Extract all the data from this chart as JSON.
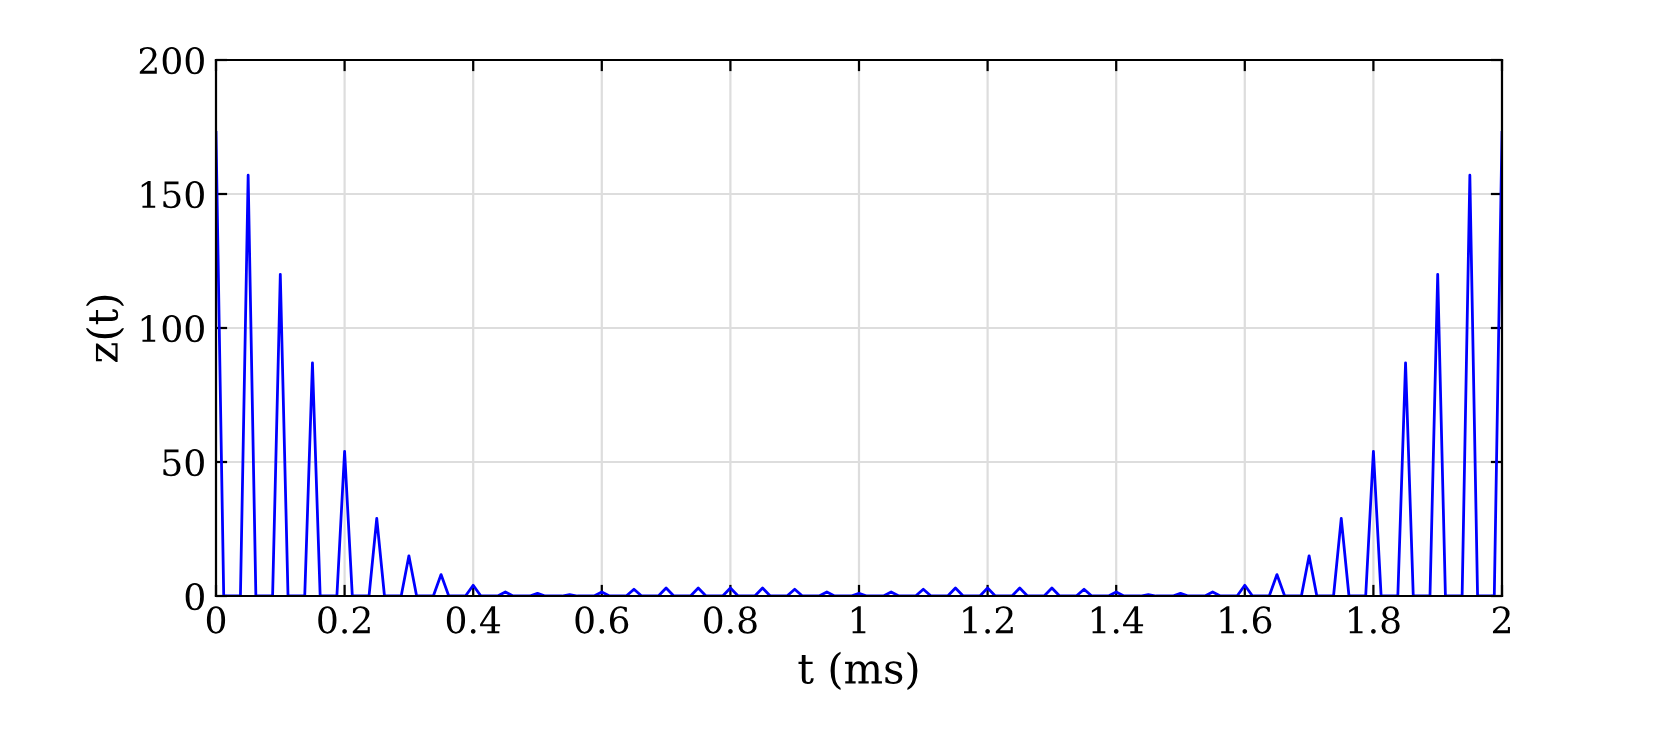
{
  "chart_data": {
    "type": "line",
    "xlabel": "t (ms)",
    "ylabel": "z(t)",
    "xlim": [
      0,
      2
    ],
    "ylim": [
      0,
      200
    ],
    "xticks": [
      0,
      0.2,
      0.4,
      0.6,
      0.8,
      1,
      1.2,
      1.4,
      1.6,
      1.8,
      2
    ],
    "yticks": [
      0,
      50,
      100,
      150,
      200
    ],
    "grid": true,
    "line_style": "solid",
    "marker": "none",
    "series": [
      {
        "color": "#0000ff",
        "x": [
          0,
          0.012,
          0.038,
          0.05,
          0.062,
          0.088,
          0.1,
          0.112,
          0.138,
          0.15,
          0.162,
          0.188,
          0.2,
          0.212,
          0.238,
          0.25,
          0.262,
          0.288,
          0.3,
          0.312,
          0.338,
          0.35,
          0.362,
          0.388,
          0.4,
          0.412,
          0.438,
          0.45,
          0.462,
          0.488,
          0.5,
          0.512,
          0.538,
          0.55,
          0.562,
          0.588,
          0.6,
          0.612,
          0.638,
          0.65,
          0.662,
          0.688,
          0.7,
          0.712,
          0.738,
          0.75,
          0.762,
          0.788,
          0.8,
          0.812,
          0.838,
          0.85,
          0.862,
          0.888,
          0.9,
          0.912,
          0.938,
          0.95,
          0.962,
          0.988,
          1,
          1.012,
          1.038,
          1.05,
          1.062,
          1.088,
          1.1,
          1.112,
          1.138,
          1.15,
          1.162,
          1.188,
          1.2,
          1.212,
          1.238,
          1.25,
          1.262,
          1.288,
          1.3,
          1.312,
          1.338,
          1.35,
          1.362,
          1.388,
          1.4,
          1.412,
          1.438,
          1.45,
          1.462,
          1.488,
          1.5,
          1.512,
          1.538,
          1.55,
          1.562,
          1.588,
          1.6,
          1.612,
          1.638,
          1.65,
          1.662,
          1.688,
          1.7,
          1.712,
          1.738,
          1.75,
          1.762,
          1.788,
          1.8,
          1.812,
          1.838,
          1.85,
          1.862,
          1.888,
          1.9,
          1.912,
          1.938,
          1.95,
          1.962,
          1.988,
          2
        ],
        "values": [
          173,
          0,
          0,
          157,
          0,
          0,
          120,
          0,
          0,
          87,
          0,
          0,
          54,
          0,
          0,
          29,
          0,
          0,
          15,
          0,
          0,
          8,
          0,
          0,
          4,
          0,
          0,
          1.5,
          0,
          0,
          1,
          0,
          0,
          0.5,
          0,
          0,
          1.5,
          0,
          0,
          2.5,
          0,
          0,
          3,
          0,
          0,
          3,
          0,
          0,
          3,
          0,
          0,
          3,
          0,
          0,
          2.5,
          0,
          0,
          1.5,
          0,
          0,
          1,
          0,
          0,
          1.5,
          0,
          0,
          2.5,
          0,
          0,
          3,
          0,
          0,
          3,
          0,
          0,
          3,
          0,
          0,
          3,
          0,
          0,
          2.5,
          0,
          0,
          1.5,
          0,
          0,
          0.5,
          0,
          0,
          1,
          0,
          0,
          1.5,
          0,
          0,
          4,
          0,
          0,
          8,
          0,
          0,
          15,
          0,
          0,
          29,
          0,
          0,
          54,
          0,
          0,
          87,
          0,
          0,
          120,
          0,
          0,
          157,
          0,
          0,
          173
        ]
      }
    ]
  }
}
